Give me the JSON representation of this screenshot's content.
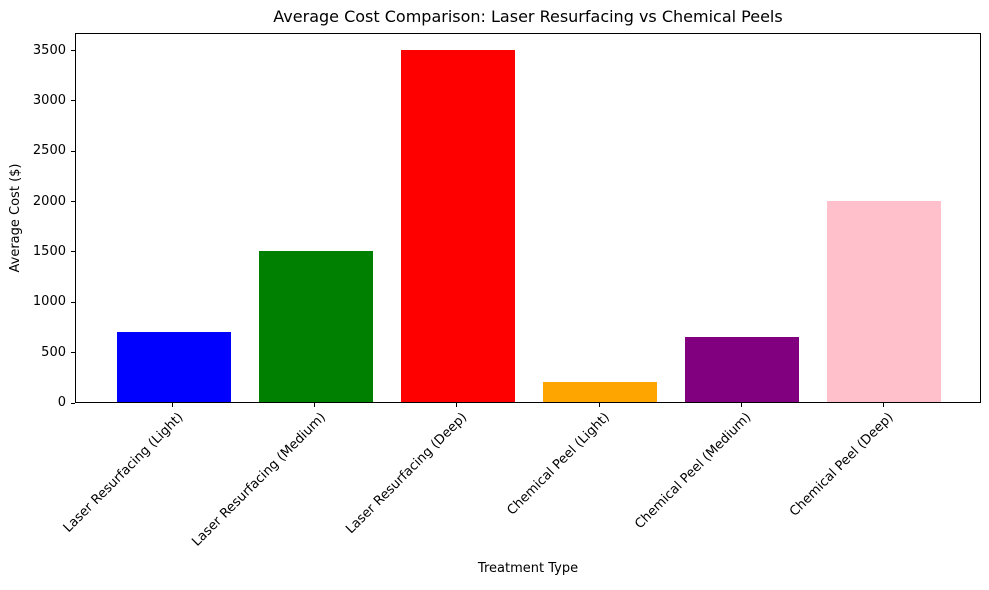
{
  "chart_data": {
    "type": "bar",
    "title": "Average Cost Comparison: Laser Resurfacing vs Chemical Peels",
    "xlabel": "Treatment Type",
    "ylabel": "Average Cost ($)",
    "categories": [
      "Laser Resurfacing (Light)",
      "Laser Resurfacing (Medium)",
      "Laser Resurfacing (Deep)",
      "Chemical Peel (Light)",
      "Chemical Peel (Medium)",
      "Chemical Peel (Deep)"
    ],
    "values": [
      700,
      1500,
      3500,
      200,
      650,
      2000
    ],
    "bar_colors": [
      "#0000ff",
      "#008000",
      "#ff0000",
      "#ffa500",
      "#800080",
      "#ffc0cb"
    ],
    "yticks": [
      0,
      500,
      1000,
      1500,
      2000,
      2500,
      3000,
      3500
    ],
    "ylim": [
      0,
      3675
    ],
    "bar_width_fraction": 0.8,
    "x_tick_rotation": 45,
    "grid": false,
    "legend": "none",
    "axis_color": "#000000",
    "background_color": "#ffffff"
  }
}
